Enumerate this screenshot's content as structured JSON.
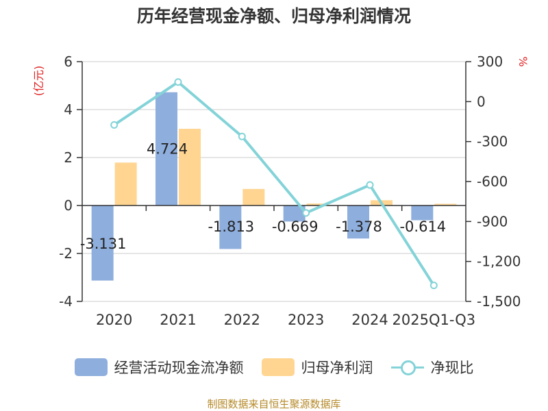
{
  "chart_data": {
    "type": "bar+line",
    "title": "历年经营现金净额、归母净利润情况",
    "categories": [
      "2020",
      "2021",
      "2022",
      "2023",
      "2024",
      "2025Q1-Q3"
    ],
    "series": [
      {
        "name": "经营活动现金流净额",
        "type": "bar",
        "axis": "left",
        "values": [
          -3.131,
          4.724,
          -1.813,
          -0.669,
          -1.378,
          -0.614
        ],
        "labels": [
          "-3.131",
          "4.724",
          "-1.813",
          "-0.669",
          "-1.378",
          "-0.614"
        ]
      },
      {
        "name": "归母净利润",
        "type": "bar",
        "axis": "left",
        "values": [
          1.79,
          3.2,
          0.69,
          0.08,
          0.22,
          0.07
        ]
      },
      {
        "name": "净现比",
        "type": "line",
        "axis": "right",
        "values": [
          -175,
          147,
          -262,
          -836,
          -626,
          -1380
        ]
      }
    ],
    "left_axis": {
      "label": "(亿元)",
      "min": -4,
      "max": 6,
      "ticks": [
        -4,
        -2,
        0,
        2,
        4,
        6
      ],
      "tick_labels": [
        "-4",
        "-2",
        "0",
        "2",
        "4",
        "6"
      ]
    },
    "right_axis": {
      "label": "%",
      "min": -1500,
      "max": 300,
      "ticks": [
        -1500,
        -1200,
        -900,
        -600,
        -300,
        0,
        300
      ],
      "tick_labels": [
        "-1,500",
        "-1,200",
        "-900",
        "-600",
        "-300",
        "0",
        "300"
      ]
    },
    "colors": {
      "cash_flow": "#8eaedd",
      "net_profit": "#ffd591",
      "ratio": "#83d3d8"
    }
  },
  "legend": {
    "cash_flow": "经营活动现金流净额",
    "net_profit": "归母净利润",
    "ratio": "净现比"
  },
  "source": "制图数据来自恒生聚源数据库"
}
